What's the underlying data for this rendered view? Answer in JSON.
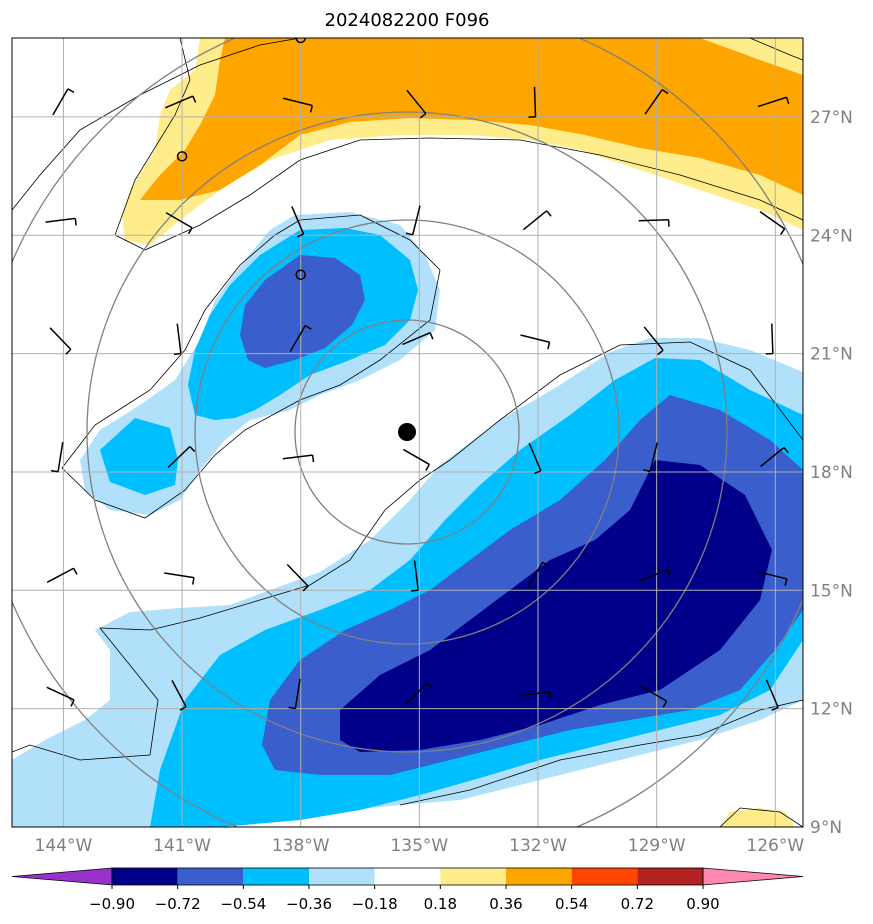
{
  "map": {
    "title": "2024082200 F096",
    "lon_labels": [
      "144°W",
      "141°W",
      "138°W",
      "135°W",
      "132°W",
      "129°W",
      "126°W"
    ],
    "lon_values": [
      -144,
      -141,
      -138,
      -135,
      -132,
      -129,
      -126
    ],
    "lat_labels": [
      "27°N",
      "24°N",
      "21°N",
      "18°N",
      "15°N",
      "12°N",
      "9°N"
    ],
    "lat_values": [
      27,
      24,
      21,
      18,
      15,
      12,
      9
    ],
    "lon_range": [
      -145.3,
      -125.3
    ],
    "lat_range": [
      9,
      29
    ],
    "gridlines": true,
    "storm_center": {
      "lon": -135,
      "lat": 19
    },
    "range_rings": true
  },
  "colorbar": {
    "levels": [
      "-0.90",
      "-0.72",
      "-0.54",
      "-0.36",
      "-0.18",
      "0.18",
      "0.36",
      "0.54",
      "0.72",
      "0.90"
    ],
    "colors": [
      "#9932cc",
      "#00008b",
      "#3a5fcd",
      "#00bfff",
      "#b0e0fa",
      "#ffffff",
      "#ffec8b",
      "#ffa500",
      "#ff4500",
      "#b22222",
      "#ff88b0"
    ],
    "extend": "both"
  },
  "colors": {
    "land_outline": "#000000",
    "ring": "#808080",
    "grid": "#b0b0b0"
  }
}
